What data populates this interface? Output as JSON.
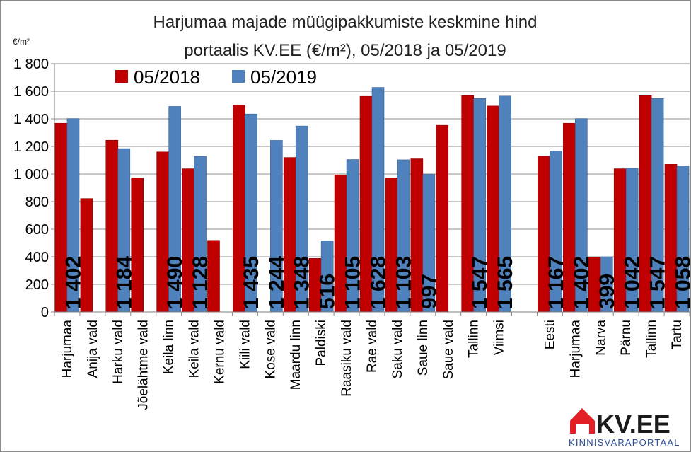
{
  "chart_data": {
    "type": "bar",
    "title": [
      "Harjumaa majade müügipakkumiste keskmine hind",
      "portaalis KV.EE (€/m²), 05/2018 ja 05/2019"
    ],
    "unit_label": "€/m²",
    "ylim": [
      0,
      1800
    ],
    "yticks": [
      0,
      200,
      400,
      600,
      800,
      1000,
      1200,
      1400,
      1600,
      1800
    ],
    "ytick_labels": [
      "0",
      "200",
      "400",
      "600",
      "800",
      "1 000",
      "1 200",
      "1 400",
      "1 600",
      "1 800"
    ],
    "grid": true,
    "legend_placement": "top-left",
    "categories": [
      "Harjumaa",
      "Anija vald",
      "Harku vald",
      "Jõelähtme vald",
      "Keila linn",
      "Keila vald",
      "Kernu vald",
      "Kiili vald",
      "Kose vald",
      "Maardu linn",
      "Paldiski",
      "Raasiku vald",
      "Rae vald",
      "Saku vald",
      "Saue linn",
      "Saue vald",
      "Tallinn",
      "Viimsi",
      "",
      "Eesti",
      "Harjumaa",
      "Narva",
      "Pärnu",
      "Tallinn",
      "Tartu"
    ],
    "series": [
      {
        "name": "05/2018",
        "color": "#c00000",
        "values": [
          1368,
          822,
          1245,
          972,
          1160,
          1038,
          519,
          1500,
          0,
          1120,
          388,
          993,
          1563,
          972,
          1110,
          1353,
          1568,
          1493,
          0,
          1130,
          1368,
          396,
          1038,
          1568,
          1070
        ]
      },
      {
        "name": "05/2019",
        "color": "#4f81bd",
        "values": [
          1402,
          0,
          1184,
          0,
          1490,
          1128,
          0,
          1435,
          1244,
          1348,
          516,
          1105,
          1628,
          1103,
          997,
          0,
          1547,
          1565,
          0,
          1167,
          1402,
          399,
          1042,
          1547,
          1058
        ]
      }
    ],
    "data_labels": [
      "1 402",
      "",
      "1 184",
      "",
      "1 490",
      "1 128",
      "",
      "1 435",
      "1 244",
      "1 348",
      "516",
      "1 105",
      "1 628",
      "1 103",
      "997",
      "",
      "1 547",
      "1 565",
      "",
      "1 167",
      "1 402",
      "399",
      "1 042",
      "1 547",
      "1 058"
    ]
  },
  "logo": {
    "name": "KV.EE",
    "subtitle": "KINNISVARAPORTAAL",
    "icon": "house-icon",
    "colors": {
      "house": "#e31e24",
      "text": "#1a1a1a",
      "subtitle": "#2b4f9e"
    }
  }
}
